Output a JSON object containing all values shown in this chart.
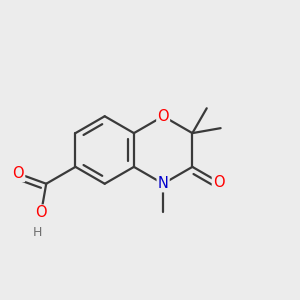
{
  "background_color": "#ececec",
  "bond_color": "#3a3a3a",
  "bond_width": 1.6,
  "atom_colors": {
    "O": "#ff0000",
    "N": "#0000cc",
    "C": "#3a3a3a",
    "H": "#707070"
  },
  "font_size_atom": 10.5,
  "font_size_small": 9.0,
  "xlim": [
    0.02,
    0.98
  ],
  "ylim": [
    0.12,
    0.88
  ]
}
